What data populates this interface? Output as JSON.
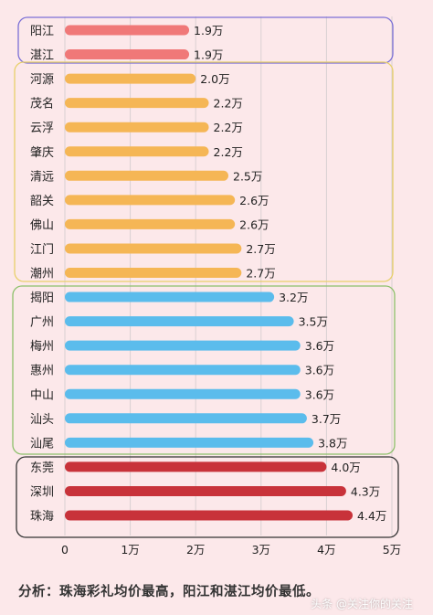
{
  "chart_data": {
    "type": "bar",
    "orientation": "horizontal",
    "categories": [
      "阳江",
      "湛江",
      "河源",
      "茂名",
      "云浮",
      "肇庆",
      "清远",
      "韶关",
      "佛山",
      "江门",
      "潮州",
      "揭阳",
      "广州",
      "梅州",
      "惠州",
      "中山",
      "汕头",
      "汕尾",
      "东莞",
      "深圳",
      "珠海"
    ],
    "values": [
      1.9,
      1.9,
      2.0,
      2.2,
      2.2,
      2.2,
      2.5,
      2.6,
      2.6,
      2.7,
      2.7,
      3.2,
      3.5,
      3.6,
      3.6,
      3.6,
      3.7,
      3.8,
      4.0,
      4.3,
      4.4
    ],
    "value_labels": [
      "1.9万",
      "1.9万",
      "2.0万",
      "2.2万",
      "2.2万",
      "2.2万",
      "2.5万",
      "2.6万",
      "2.6万",
      "2.7万",
      "2.7万",
      "3.2万",
      "3.5万",
      "3.6万",
      "3.6万",
      "3.6万",
      "3.7万",
      "3.8万",
      "4.0万",
      "4.3万",
      "4.4万"
    ],
    "xlim": [
      0,
      5
    ],
    "xticks": [
      "0",
      "1万",
      "2万",
      "3万",
      "4万",
      "5万"
    ],
    "grid": "vertical",
    "groups": [
      {
        "count": 2,
        "bar_color": "#f07878",
        "box_color": "#7b6fd6"
      },
      {
        "count": 9,
        "bar_color": "#f5b655",
        "box_color": "#e8d06a"
      },
      {
        "count": 7,
        "bar_color": "#5bbcec",
        "box_color": "#8cc06a"
      },
      {
        "count": 3,
        "bar_color": "#c8323a",
        "box_color": "#333333"
      }
    ]
  },
  "footer": {
    "analysis": "分析：珠海彩礼均价最高，阳江和湛江均价最低。",
    "watermark": "头条 @关注你的关注"
  }
}
